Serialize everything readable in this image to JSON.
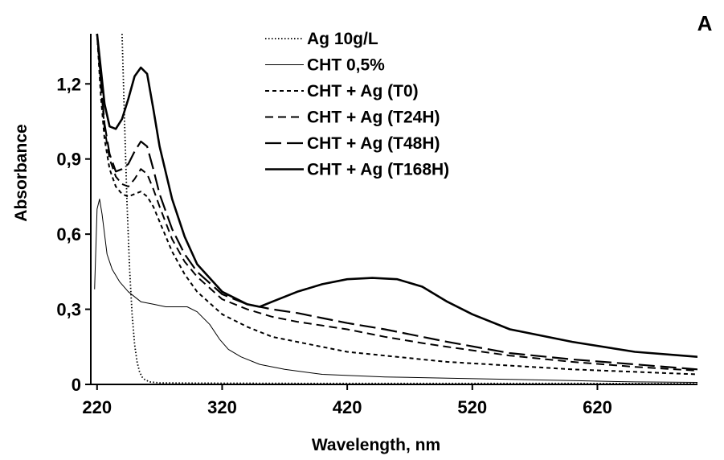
{
  "panel_label": "A",
  "chart_data": {
    "type": "line",
    "xlabel": "Wavelength, nm",
    "ylabel": "Absorbance",
    "xlim": [
      215,
      700
    ],
    "ylim": [
      0,
      1.4
    ],
    "x_ticks": [
      "220",
      "320",
      "420",
      "520",
      "620"
    ],
    "y_ticks": [
      "0",
      "0,3",
      "0,6",
      "0,9",
      "1,2"
    ],
    "x_tick_values": [
      220,
      320,
      420,
      520,
      620
    ],
    "y_tick_values": [
      0,
      0.3,
      0.6,
      0.9,
      1.2
    ],
    "grid": false,
    "legend_position": "top-center",
    "series": [
      {
        "name": "Ag 10g/L",
        "style": "dotted",
        "x": [
          240,
          242,
          244,
          246,
          248,
          250,
          252,
          254,
          256,
          258,
          262,
          270,
          300,
          400,
          500,
          600,
          700
        ],
        "y": [
          1.4,
          1.05,
          0.72,
          0.46,
          0.28,
          0.16,
          0.09,
          0.05,
          0.03,
          0.02,
          0.01,
          0.006,
          0.005,
          0.004,
          0.004,
          0.004,
          0.003
        ]
      },
      {
        "name": "CHT 0,5%",
        "style": "thin-solid",
        "x": [
          218,
          220,
          222,
          224,
          226,
          228,
          232,
          238,
          245,
          255,
          265,
          275,
          285,
          292,
          300,
          310,
          318,
          325,
          335,
          350,
          370,
          400,
          450,
          500,
          550,
          600,
          650,
          700
        ],
        "y": [
          0.38,
          0.7,
          0.74,
          0.68,
          0.6,
          0.52,
          0.46,
          0.41,
          0.37,
          0.33,
          0.32,
          0.31,
          0.31,
          0.31,
          0.29,
          0.24,
          0.18,
          0.14,
          0.11,
          0.08,
          0.06,
          0.04,
          0.03,
          0.025,
          0.02,
          0.015,
          0.01,
          0.008
        ]
      },
      {
        "name": "CHT + Ag (T0)",
        "style": "short-dash",
        "x": [
          220,
          223,
          226,
          230,
          235,
          240,
          245,
          250,
          255,
          260,
          265,
          270,
          280,
          290,
          300,
          320,
          340,
          360,
          380,
          400,
          420,
          450,
          480,
          500,
          550,
          600,
          650,
          700
        ],
        "y": [
          1.4,
          1.15,
          0.98,
          0.86,
          0.79,
          0.76,
          0.75,
          0.76,
          0.77,
          0.75,
          0.71,
          0.65,
          0.53,
          0.44,
          0.37,
          0.28,
          0.23,
          0.19,
          0.17,
          0.15,
          0.13,
          0.115,
          0.1,
          0.09,
          0.075,
          0.06,
          0.05,
          0.04
        ]
      },
      {
        "name": "CHT + Ag (T24H)",
        "style": "medium-dash",
        "x": [
          220,
          223,
          226,
          230,
          235,
          240,
          245,
          250,
          255,
          260,
          265,
          270,
          280,
          290,
          300,
          320,
          340,
          360,
          380,
          400,
          420,
          450,
          480,
          500,
          550,
          600,
          650,
          700
        ],
        "y": [
          1.4,
          1.2,
          1.02,
          0.9,
          0.83,
          0.8,
          0.79,
          0.82,
          0.86,
          0.84,
          0.78,
          0.71,
          0.58,
          0.49,
          0.43,
          0.34,
          0.3,
          0.27,
          0.25,
          0.235,
          0.22,
          0.19,
          0.165,
          0.15,
          0.115,
          0.09,
          0.07,
          0.055
        ]
      },
      {
        "name": "CHT + Ag (T48H)",
        "style": "long-dash",
        "x": [
          220,
          223,
          226,
          230,
          235,
          240,
          245,
          250,
          255,
          260,
          265,
          270,
          280,
          290,
          300,
          320,
          340,
          360,
          380,
          400,
          420,
          450,
          480,
          500,
          550,
          600,
          650,
          700
        ],
        "y": [
          1.4,
          1.22,
          1.04,
          0.92,
          0.85,
          0.86,
          0.88,
          0.93,
          0.97,
          0.95,
          0.86,
          0.76,
          0.62,
          0.52,
          0.45,
          0.36,
          0.32,
          0.3,
          0.285,
          0.265,
          0.245,
          0.22,
          0.19,
          0.17,
          0.125,
          0.1,
          0.08,
          0.06
        ]
      },
      {
        "name": "CHT + Ag (T168H)",
        "style": "thick-solid",
        "x": [
          220,
          223,
          226,
          230,
          235,
          240,
          245,
          250,
          255,
          260,
          265,
          270,
          280,
          290,
          300,
          320,
          340,
          350,
          360,
          380,
          400,
          420,
          440,
          460,
          480,
          500,
          520,
          550,
          600,
          650,
          700
        ],
        "y": [
          1.4,
          1.26,
          1.12,
          1.03,
          1.02,
          1.06,
          1.14,
          1.23,
          1.265,
          1.24,
          1.1,
          0.95,
          0.74,
          0.59,
          0.48,
          0.37,
          0.32,
          0.31,
          0.33,
          0.37,
          0.4,
          0.42,
          0.425,
          0.42,
          0.39,
          0.33,
          0.28,
          0.22,
          0.17,
          0.13,
          0.11
        ]
      }
    ]
  }
}
